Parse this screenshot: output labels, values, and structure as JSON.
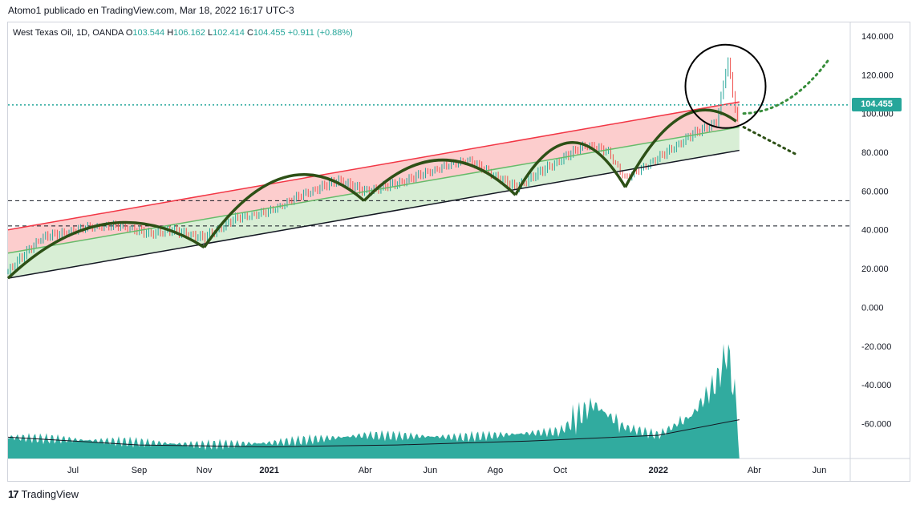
{
  "header": {
    "publish_line": "Atomo1 publicado en TradingView.com, Mar 18, 2022 16:17 UTC-3"
  },
  "legend": {
    "symbol": "West Texas Oil, 1D, OANDA",
    "open_label": "O",
    "open": "103.544",
    "high_label": "H",
    "high": "106.162",
    "low_label": "L",
    "low": "102.414",
    "close_label": "C",
    "close": "104.455",
    "change": "+0.911 (+0.88%)"
  },
  "price_tag": "104.455",
  "brand": {
    "name": "TradingView",
    "icon": "tradingview-logo-icon"
  },
  "colors": {
    "up": "#26a69a",
    "down": "#ef5350",
    "upper_channel": "#f23645",
    "upper_fill": "#fbc4c4",
    "mid_line": "#66bb6a",
    "lower_fill": "#d4ecd0",
    "arcs": "#2d5016",
    "projection": "#388e3c",
    "volume": "#26a69a",
    "price_line": "#26a69a"
  },
  "chart_data": {
    "type": "candlestick",
    "y_axis": {
      "ticks": [
        "140.000",
        "120.000",
        "100.000",
        "80.000",
        "60.000",
        "40.000",
        "20.000",
        "0.000",
        "-20.000",
        "-40.000",
        "-60.000"
      ],
      "tick_values": [
        140,
        120,
        100,
        80,
        60,
        40,
        20,
        0,
        -20,
        -40,
        -60
      ],
      "range": [
        -78,
        147
      ]
    },
    "x_axis": {
      "ticks": [
        "Jul",
        "Sep",
        "Nov",
        "2021",
        "Abr",
        "Jun",
        "Ago",
        "Oct",
        "2022",
        "Abr",
        "Jun"
      ],
      "tick_dates": [
        "2020-07-01",
        "2020-09-01",
        "2020-11-01",
        "2021-01-01",
        "2021-04-01",
        "2021-06-01",
        "2021-08-01",
        "2021-10-01",
        "2022-01-01",
        "2022-04-01",
        "2022-06-01"
      ],
      "bold": [
        "2021",
        "2022"
      ],
      "range": [
        "2020-05-01",
        "2022-06-30"
      ]
    },
    "last_close": 104.455,
    "price_path": [
      [
        "2020-05-01",
        19
      ],
      [
        "2020-06-01",
        36
      ],
      [
        "2020-07-15",
        41
      ],
      [
        "2020-08-15",
        42
      ],
      [
        "2020-09-10",
        38
      ],
      [
        "2020-10-01",
        40
      ],
      [
        "2020-11-01",
        36
      ],
      [
        "2020-12-01",
        46
      ],
      [
        "2021-01-01",
        49
      ],
      [
        "2021-02-01",
        58
      ],
      [
        "2021-03-08",
        66
      ],
      [
        "2021-03-31",
        60
      ],
      [
        "2021-05-01",
        64
      ],
      [
        "2021-06-01",
        70
      ],
      [
        "2021-07-06",
        76
      ],
      [
        "2021-08-20",
        62
      ],
      [
        "2021-09-15",
        71
      ],
      [
        "2021-10-25",
        84
      ],
      [
        "2021-11-15",
        80
      ],
      [
        "2021-12-01",
        66
      ],
      [
        "2022-01-01",
        77
      ],
      [
        "2022-02-01",
        89
      ],
      [
        "2022-02-25",
        96
      ],
      [
        "2022-03-07",
        128
      ],
      [
        "2022-03-16",
        96
      ],
      [
        "2022-03-18",
        104.455
      ]
    ],
    "volume_path": [
      [
        "2020-05-01",
        -67
      ],
      [
        "2020-08-01",
        -69
      ],
      [
        "2020-11-01",
        -71
      ],
      [
        "2021-01-01",
        -70
      ],
      [
        "2021-04-01",
        -66
      ],
      [
        "2021-07-01",
        -67
      ],
      [
        "2021-10-01",
        -64
      ],
      [
        "2021-11-01",
        -50
      ],
      [
        "2021-12-01",
        -62
      ],
      [
        "2022-01-01",
        -66
      ],
      [
        "2022-02-01",
        -56
      ],
      [
        "2022-02-25",
        -38
      ],
      [
        "2022-03-07",
        -22
      ],
      [
        "2022-03-18",
        -62
      ]
    ],
    "volume_ma": [
      [
        "2020-05-01",
        -67
      ],
      [
        "2020-09-01",
        -71
      ],
      [
        "2021-01-01",
        -72
      ],
      [
        "2021-05-01",
        -71
      ],
      [
        "2021-09-01",
        -69
      ],
      [
        "2022-01-01",
        -66
      ],
      [
        "2022-03-18",
        -58
      ]
    ],
    "drawings": {
      "upper_channel": [
        [
          "2020-05-01",
          40
        ],
        [
          "2022-03-18",
          106
        ]
      ],
      "mid_line": [
        [
          "2020-05-01",
          28
        ],
        [
          "2022-03-18",
          93
        ]
      ],
      "lower_channel": [
        [
          "2020-05-01",
          15
        ],
        [
          "2022-03-18",
          81
        ]
      ],
      "horizontal_lines": [
        55,
        42
      ],
      "price_line": 104.455,
      "arcs_bottoms": [
        [
          "2020-05-01",
          15
        ],
        [
          "2020-11-01",
          31
        ],
        [
          "2021-03-31",
          55
        ],
        [
          "2021-08-20",
          58
        ],
        [
          "2021-12-01",
          62
        ],
        [
          "2022-03-15",
          96
        ]
      ],
      "arc_peaks": [
        43,
        67,
        76,
        85,
        98
      ],
      "projection_up": [
        [
          "2022-03-22",
          100
        ],
        [
          "2022-06-10",
          128
        ]
      ],
      "projection_down": [
        [
          "2022-03-22",
          93
        ],
        [
          "2022-05-10",
          79
        ]
      ],
      "highlight_circle": [
        "2022-03-05",
        114
      ]
    }
  }
}
